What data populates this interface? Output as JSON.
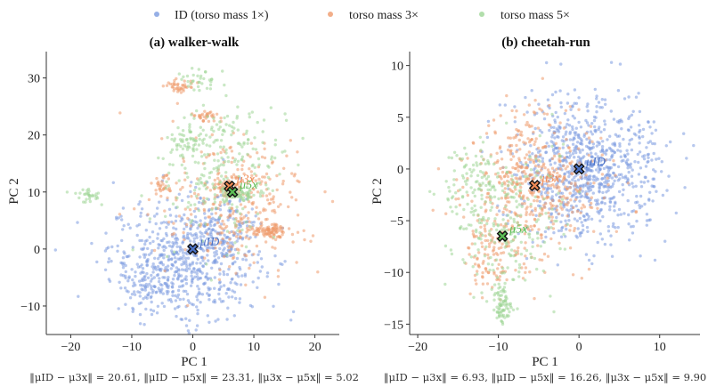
{
  "legend": {
    "placement": "top-center",
    "entries": [
      {
        "label": "ID (torso mass 1×)",
        "color": "#7b9be0"
      },
      {
        "label": "torso mass 3×",
        "color": "#ef9a6b"
      },
      {
        "label": "torso mass 5×",
        "color": "#9ed696"
      }
    ]
  },
  "chart_data": [
    {
      "type": "scatter",
      "title": "(a) walker-walk",
      "xlabel": "PC 1",
      "ylabel": "PC 2",
      "xlim": [
        -24,
        24
      ],
      "ylim": [
        -15,
        34
      ],
      "xticks": [
        -20,
        -10,
        0,
        10,
        20
      ],
      "yticks": [
        -10,
        0,
        10,
        20,
        30
      ],
      "grid": false,
      "distances_text": "‖μID − μ3x‖ = 20.61, ‖μID − μ5x‖ = 23.31, ‖μ3x − μ5x‖ = 5.02",
      "means": [
        {
          "label": "μID",
          "x": 0,
          "y": 0,
          "color": "#4a72c8",
          "label_color": "#4a72c8"
        },
        {
          "label": "μ3x",
          "x": 6,
          "y": 11,
          "color": "#ef8a55",
          "label_color": "#ef8a55"
        },
        {
          "label": "μ5x",
          "x": 6.5,
          "y": 10,
          "color": "#5cbd55",
          "label_color": "#5cbd55"
        }
      ],
      "series": [
        {
          "name": "ID (torso mass 1×)",
          "color": "#7b9be0",
          "clusters": [
            {
              "cx": -1.5,
              "cy": -2,
              "sx": 6,
              "sy": 5,
              "n": 650
            },
            {
              "cx": 5,
              "cy": 3,
              "sx": 3,
              "sy": 4,
              "n": 120
            },
            {
              "cx": -8,
              "cy": -8,
              "sx": 2,
              "sy": 2,
              "n": 40
            }
          ]
        },
        {
          "name": "torso mass 3×",
          "color": "#ef9a6b",
          "clusters": [
            {
              "cx": 7,
              "cy": 8,
              "sx": 6,
              "sy": 6,
              "n": 300
            },
            {
              "cx": -2,
              "cy": 28.5,
              "sx": 1.5,
              "sy": 0.7,
              "n": 40
            },
            {
              "cx": 2.5,
              "cy": 23.5,
              "sx": 1,
              "sy": 0.5,
              "n": 30
            },
            {
              "cx": 13,
              "cy": 3,
              "sx": 1,
              "sy": 0.6,
              "n": 60
            },
            {
              "cx": 6,
              "cy": 11,
              "sx": 1,
              "sy": 0.8,
              "n": 60
            },
            {
              "cx": -5,
              "cy": 11,
              "sx": 1,
              "sy": 1,
              "n": 30
            },
            {
              "cx": 10,
              "cy": 3.5,
              "sx": 2,
              "sy": 0.6,
              "n": 40
            }
          ]
        },
        {
          "name": "torso mass 5×",
          "color": "#9ed696",
          "clusters": [
            {
              "cx": 5,
              "cy": 14,
              "sx": 5,
              "sy": 6,
              "n": 260
            },
            {
              "cx": 7.5,
              "cy": 9.5,
              "sx": 1.2,
              "sy": 0.8,
              "n": 60
            },
            {
              "cx": -17,
              "cy": 9.5,
              "sx": 1.5,
              "sy": 0.6,
              "n": 30
            },
            {
              "cx": 1,
              "cy": 30,
              "sx": 1.5,
              "sy": 1.2,
              "n": 30
            },
            {
              "cx": -1,
              "cy": 19,
              "sx": 1.5,
              "sy": 1,
              "n": 40
            }
          ]
        }
      ]
    },
    {
      "type": "scatter",
      "title": "(b) cheetah-run",
      "xlabel": "PC 1",
      "ylabel": "PC 2",
      "xlim": [
        -21,
        15
      ],
      "ylim": [
        -16,
        11
      ],
      "xticks": [
        -20,
        -10,
        0,
        10
      ],
      "yticks": [
        -15,
        -10,
        -5,
        0,
        5,
        10
      ],
      "grid": false,
      "distances_text": "‖μID − μ3x‖ = 6.93, ‖μID − μ5x‖ = 16.26, ‖μ3x − μ5x‖ = 9.90",
      "means": [
        {
          "label": "μID",
          "x": 0,
          "y": 0,
          "color": "#4a72c8",
          "label_color": "#4a72c8"
        },
        {
          "label": "μ3x",
          "x": -5.5,
          "y": -1.6,
          "color": "#ef8a55",
          "label_color": "#ef8a55"
        },
        {
          "label": "μ5x",
          "x": -9.5,
          "y": -6.5,
          "color": "#5cbd55",
          "label_color": "#5cbd55"
        }
      ],
      "series": [
        {
          "name": "ID (torso mass 1×)",
          "color": "#7b9be0",
          "clusters": [
            {
              "cx": 0,
              "cy": 0,
              "sx": 4,
              "sy": 3.5,
              "n": 750
            },
            {
              "cx": 7,
              "cy": 0,
              "sx": 2.5,
              "sy": 3,
              "n": 100
            }
          ]
        },
        {
          "name": "torso mass 3×",
          "color": "#ef9a6b",
          "clusters": [
            {
              "cx": -5.5,
              "cy": -1.5,
              "sx": 4,
              "sy": 3.5,
              "n": 500
            },
            {
              "cx": -11,
              "cy": -8.5,
              "sx": 1.5,
              "sy": 2,
              "n": 100
            }
          ]
        },
        {
          "name": "torso mass 5×",
          "color": "#9ed696",
          "clusters": [
            {
              "cx": -9.5,
              "cy": -5,
              "sx": 3.5,
              "sy": 3.5,
              "n": 250
            },
            {
              "cx": -9.5,
              "cy": -13,
              "sx": 0.6,
              "sy": 1,
              "n": 80
            },
            {
              "cx": -13,
              "cy": -1,
              "sx": 2,
              "sy": 2,
              "n": 60
            }
          ]
        }
      ]
    }
  ]
}
